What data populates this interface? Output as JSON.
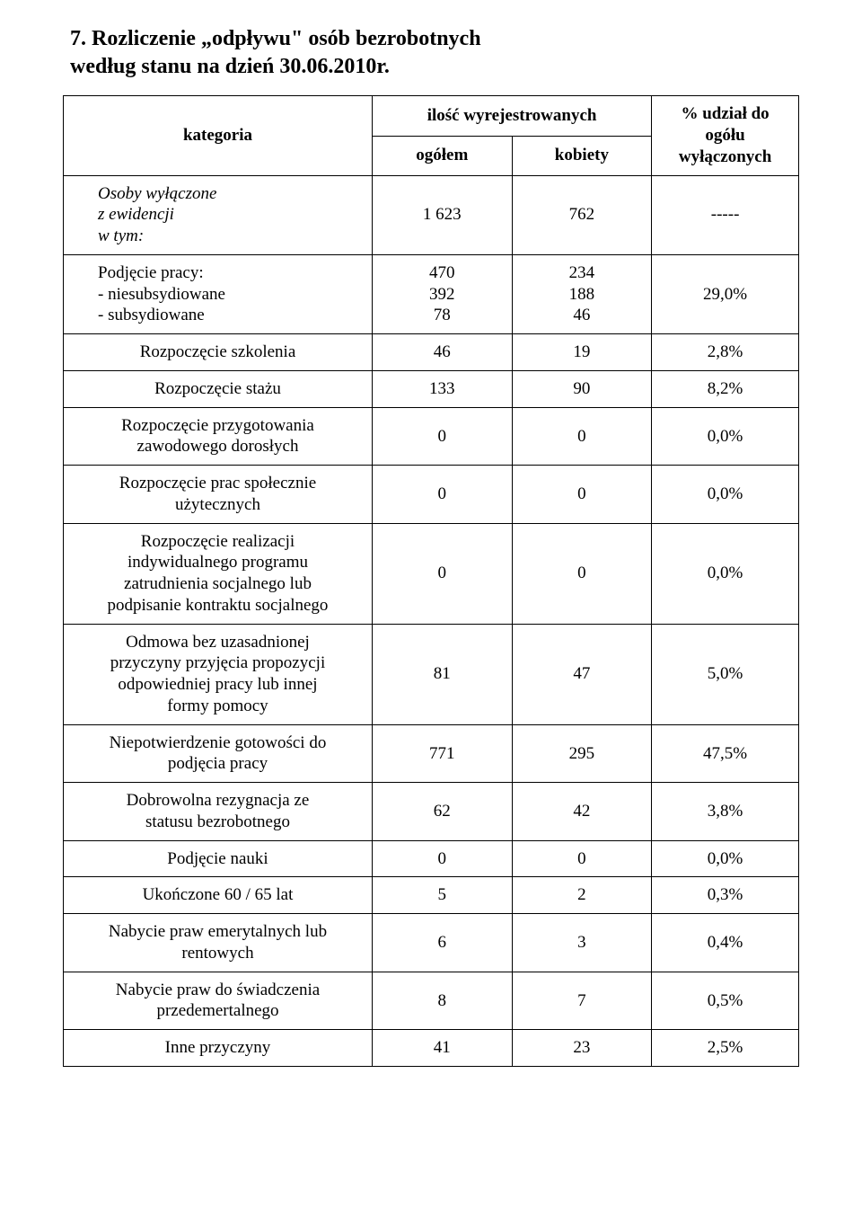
{
  "title_line1": "7. Rozliczenie „odpływu\" osób bezrobotnych",
  "title_line2": "według stanu na dzień 30.06.2010r.",
  "header": {
    "kategoria": "kategoria",
    "ilosc": "ilość wyrejestrowanych",
    "ogolem": "ogółem",
    "kobiety": "kobiety",
    "udzial": "% udział do ogółu\nwyłączonych"
  },
  "rows": {
    "r0": {
      "label": "Osoby wyłączone\nz ewidencji\nw tym:",
      "a": "1 623",
      "b": "762",
      "c": "-----"
    },
    "r1": {
      "label": "Podjęcie pracy:\n- niesubsydiowane\n- subsydiowane",
      "a": "470\n392\n78",
      "b": "234\n188\n46",
      "c": "29,0%"
    },
    "r2": {
      "label": "Rozpoczęcie szkolenia",
      "a": "46",
      "b": "19",
      "c": "2,8%"
    },
    "r3": {
      "label": "Rozpoczęcie stażu",
      "a": "133",
      "b": "90",
      "c": "8,2%"
    },
    "r4": {
      "label": "Rozpoczęcie przygotowania\nzawodowego dorosłych",
      "a": "0",
      "b": "0",
      "c": "0,0%"
    },
    "r5": {
      "label": "Rozpoczęcie prac społecznie\nużytecznych",
      "a": "0",
      "b": "0",
      "c": "0,0%"
    },
    "r6": {
      "label": "Rozpoczęcie realizacji\nindywidualnego programu\nzatrudnienia socjalnego lub\npodpisanie kontraktu socjalnego",
      "a": "0",
      "b": "0",
      "c": "0,0%"
    },
    "r7": {
      "label": "Odmowa bez uzasadnionej\nprzyczyny przyjęcia propozycji\nodpowiedniej pracy lub innej\nformy pomocy",
      "a": "81",
      "b": "47",
      "c": "5,0%"
    },
    "r8": {
      "label": "Niepotwierdzenie gotowości do\npodjęcia pracy",
      "a": "771",
      "b": "295",
      "c": "47,5%"
    },
    "r9": {
      "label": "Dobrowolna rezygnacja ze\nstatusu bezrobotnego",
      "a": "62",
      "b": "42",
      "c": "3,8%"
    },
    "r10": {
      "label": "Podjęcie nauki",
      "a": "0",
      "b": "0",
      "c": "0,0%"
    },
    "r11": {
      "label": "Ukończone 60 / 65 lat",
      "a": "5",
      "b": "2",
      "c": "0,3%"
    },
    "r12": {
      "label": "Nabycie praw emerytalnych lub\nrentowych",
      "a": "6",
      "b": "3",
      "c": "0,4%"
    },
    "r13": {
      "label": "Nabycie praw do świadczenia\nprzedemertalnego",
      "a": "8",
      "b": "7",
      "c": "0,5%"
    },
    "r14": {
      "label": "Inne przyczyny",
      "a": "41",
      "b": "23",
      "c": "2,5%"
    }
  }
}
